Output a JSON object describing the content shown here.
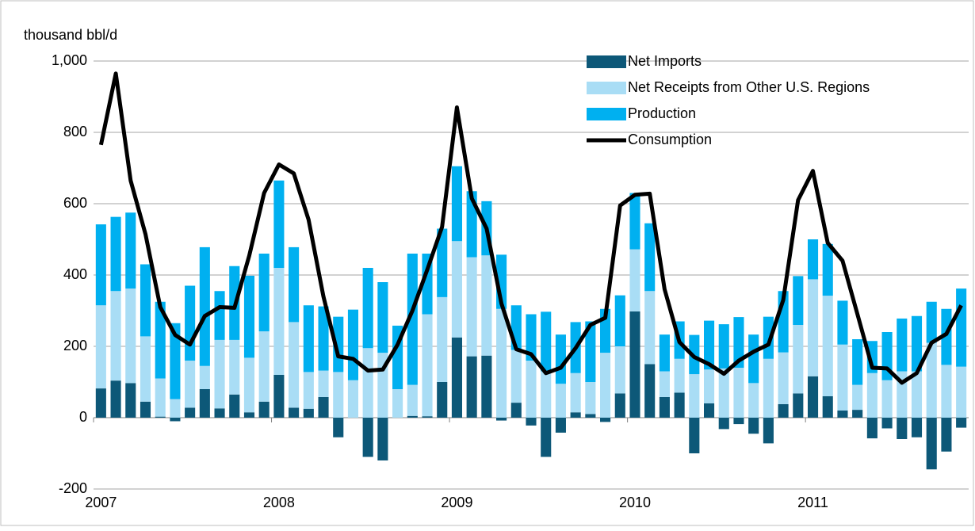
{
  "chart_data": {
    "type": "stacked-bar-line",
    "y_axis_label": "thousand bbl/d",
    "categories": [
      "2007",
      null,
      null,
      null,
      null,
      null,
      null,
      null,
      null,
      null,
      null,
      null,
      "2008",
      null,
      null,
      null,
      null,
      null,
      null,
      null,
      null,
      null,
      null,
      null,
      "2009",
      null,
      null,
      null,
      null,
      null,
      null,
      null,
      null,
      null,
      null,
      null,
      "2010",
      null,
      null,
      null,
      null,
      null,
      null,
      null,
      null,
      null,
      null,
      null,
      "2011",
      null,
      null,
      null,
      null,
      null,
      null,
      null,
      null,
      null,
      null
    ],
    "series": [
      {
        "name": "Net Imports",
        "type": "bar",
        "color": "#0d5878",
        "values": [
          82,
          104,
          97,
          45,
          3,
          -10,
          28,
          80,
          26,
          65,
          15,
          45,
          120,
          28,
          25,
          58,
          -55,
          0,
          -110,
          -120,
          0,
          5,
          4,
          100,
          225,
          172,
          174,
          -8,
          42,
          -22,
          -110,
          -42,
          15,
          10,
          -12,
          68,
          298,
          150,
          58,
          70,
          -100,
          40,
          -32,
          -18,
          -45,
          -72,
          38,
          68,
          116,
          60,
          20,
          22,
          -58,
          -30,
          -60,
          -55,
          -145,
          -95,
          -28
        ]
      },
      {
        "name": "Net Receipts from Other U.S. Regions",
        "type": "bar",
        "color": "#a9ddf5",
        "values": [
          233,
          251,
          265,
          183,
          107,
          52,
          132,
          65,
          192,
          153,
          153,
          197,
          300,
          240,
          103,
          74,
          128,
          105,
          195,
          182,
          80,
          87,
          286,
          238,
          270,
          278,
          281,
          305,
          148,
          160,
          130,
          95,
          110,
          90,
          182,
          132,
          174,
          205,
          72,
          95,
          122,
          95,
          138,
          140,
          97,
          165,
          145,
          192,
          272,
          282,
          185,
          70,
          125,
          105,
          130,
          130,
          210,
          148,
          143
        ]
      },
      {
        "name": "Production",
        "type": "bar",
        "color": "#00b0f0",
        "values": [
          227,
          208,
          213,
          202,
          215,
          213,
          210,
          333,
          137,
          207,
          230,
          218,
          245,
          210,
          187,
          180,
          155,
          198,
          225,
          198,
          178,
          368,
          170,
          192,
          210,
          185,
          152,
          152,
          125,
          130,
          167,
          138,
          143,
          170,
          123,
          143,
          158,
          190,
          103,
          105,
          110,
          137,
          124,
          142,
          136,
          118,
          172,
          137,
          112,
          145,
          123,
          128,
          90,
          135,
          148,
          155,
          115,
          157,
          219
        ]
      },
      {
        "name": "Consumption",
        "type": "line",
        "color": "#000000",
        "values": [
          765,
          965,
          665,
          515,
          310,
          232,
          205,
          285,
          310,
          308,
          455,
          630,
          710,
          685,
          555,
          340,
          172,
          165,
          132,
          135,
          205,
          300,
          415,
          535,
          870,
          615,
          530,
          320,
          192,
          178,
          125,
          140,
          195,
          260,
          280,
          595,
          625,
          628,
          360,
          212,
          170,
          150,
          123,
          160,
          185,
          205,
          330,
          610,
          692,
          490,
          440,
          290,
          140,
          138,
          98,
          125,
          210,
          235,
          315
        ]
      }
    ],
    "ylim": [
      -200,
      1000
    ],
    "yticks": [
      -200,
      0,
      200,
      400,
      600,
      800,
      {
        "value": 1000,
        "label": "1,000"
      }
    ],
    "grid": true,
    "legend": "top-right"
  }
}
